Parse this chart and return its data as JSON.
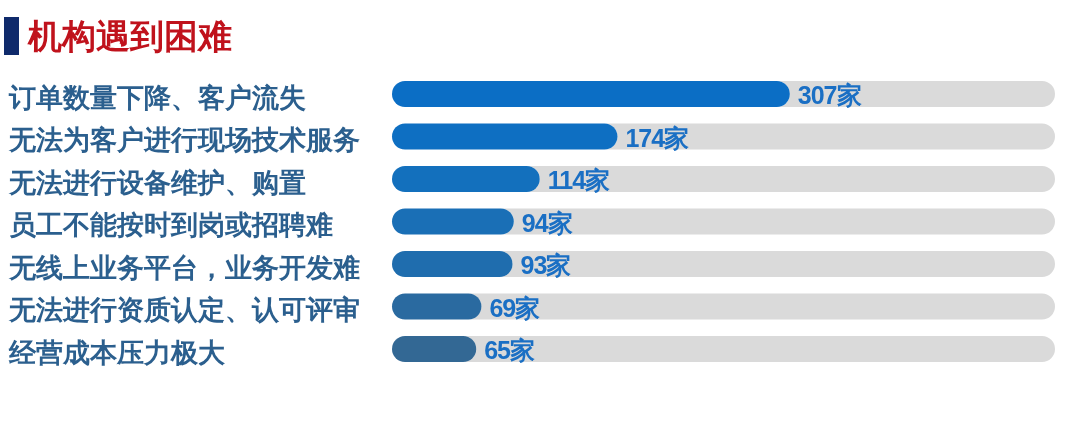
{
  "chart_data": {
    "type": "bar",
    "orientation": "horizontal",
    "title": "机构遇到困难",
    "categories": [
      "订单数量下降、客户流失",
      "无法为客户进行现场技术服务",
      "无法进行设备维护、购置",
      "员工不能按时到岗或招聘难",
      "无线上业务平台，业务开发难",
      "无法进行资质认定、认可评审",
      "经营成本压力极大"
    ],
    "values": [
      307,
      174,
      114,
      94,
      93,
      69,
      65
    ],
    "colors": [
      "#0b6ec5",
      "#0e6fc2",
      "#1370bd",
      "#1a6fb6",
      "#1f6dae",
      "#2a6aa0",
      "#336894"
    ],
    "value_labels": [
      "307家",
      "174家",
      "114家",
      "94家",
      "93家",
      "69家",
      "65家"
    ]
  }
}
